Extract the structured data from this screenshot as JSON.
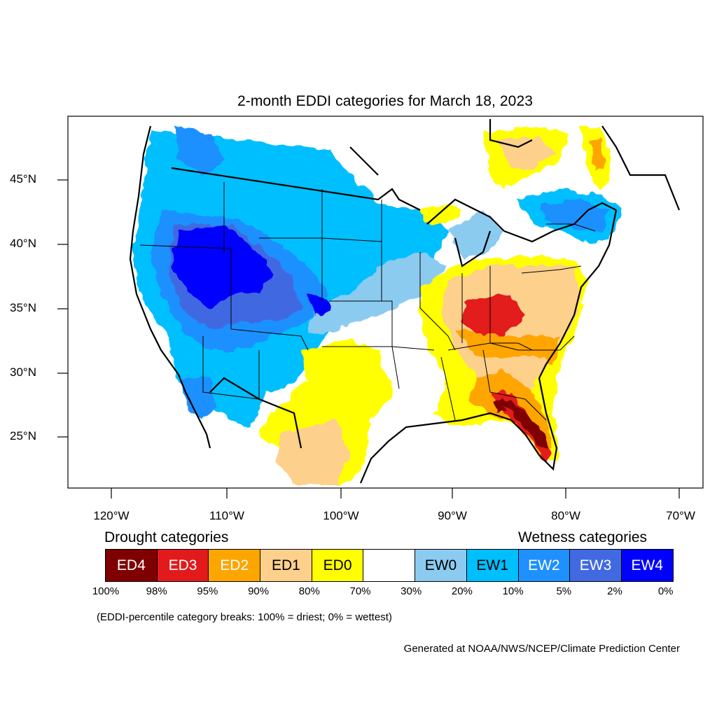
{
  "title": "2-month EDDI categories for March 18, 2023",
  "lat_labels": [
    "45°N",
    "40°N",
    "35°N",
    "30°N",
    "25°N"
  ],
  "lon_labels": [
    "120°W",
    "110°W",
    "100°W",
    "90°W",
    "80°W",
    "70°W"
  ],
  "legend": {
    "drought_heading": "Drought categories",
    "wetness_heading": "Wetness categories",
    "categories": [
      {
        "label": "ED4",
        "color": "#7f0000",
        "text": "#ffffff"
      },
      {
        "label": "ED3",
        "color": "#e31a1c",
        "text": "#ffffff"
      },
      {
        "label": "ED2",
        "color": "#ffa500",
        "text": "#ffffff"
      },
      {
        "label": "ED1",
        "color": "#fdd08c",
        "text": "#000000"
      },
      {
        "label": "ED0",
        "color": "#ffff00",
        "text": "#000000"
      },
      {
        "label": "",
        "color": "#ffffff",
        "text": "#000000"
      },
      {
        "label": "EW0",
        "color": "#8ccbf0",
        "text": "#000000"
      },
      {
        "label": "EW1",
        "color": "#00bfff",
        "text": "#000000"
      },
      {
        "label": "EW2",
        "color": "#1e90ff",
        "text": "#ffffff"
      },
      {
        "label": "EW3",
        "color": "#4169e1",
        "text": "#ffffff"
      },
      {
        "label": "EW4",
        "color": "#0000ff",
        "text": "#ffffff"
      }
    ],
    "percentiles": [
      "100%",
      "98%",
      "95%",
      "90%",
      "80%",
      "70%",
      "30%",
      "20%",
      "10%",
      "5%",
      "2%",
      "0%"
    ]
  },
  "note": "(EDDI-percentile category breaks: 100% = driest; 0% = wettest)",
  "credit": "Generated at NOAA/NWS/NCEP/Climate Prediction Center"
}
